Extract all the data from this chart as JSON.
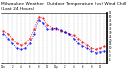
{
  "title": "Milwaukee Weather  Outdoor Temperature (vs) Wind Chill (Last 24 Hours)",
  "title_fontsize": 3.2,
  "background_color": "#ffffff",
  "grid_color": "#888888",
  "temp_color": "#ff0000",
  "wind_color": "#0000ff",
  "ylim": [
    -10,
    55
  ],
  "ytick_labels": [
    "55",
    "50",
    "45",
    "40",
    "35",
    "30",
    "25",
    "20",
    "15",
    "10",
    "5",
    "0",
    "-5"
  ],
  "ytick_vals": [
    55,
    50,
    45,
    40,
    35,
    30,
    25,
    20,
    15,
    10,
    5,
    0,
    -5
  ],
  "temp_values": [
    32,
    28,
    22,
    16,
    14,
    16,
    22,
    34,
    50,
    48,
    40,
    36,
    34,
    32,
    30,
    28,
    26,
    22,
    18,
    14,
    10,
    8,
    10,
    12
  ],
  "wind_values": [
    28,
    22,
    16,
    10,
    8,
    10,
    16,
    28,
    46,
    42,
    34,
    34,
    35,
    33,
    30,
    28,
    22,
    16,
    13,
    10,
    6,
    4,
    5,
    6
  ],
  "num_points": 24,
  "x_labels": [
    "12a",
    "",
    "2",
    "",
    "4",
    "",
    "6",
    "",
    "8",
    "",
    "10",
    "",
    "12p",
    "",
    "2",
    "",
    "4",
    "",
    "6",
    "",
    "8",
    "",
    "10",
    ""
  ]
}
